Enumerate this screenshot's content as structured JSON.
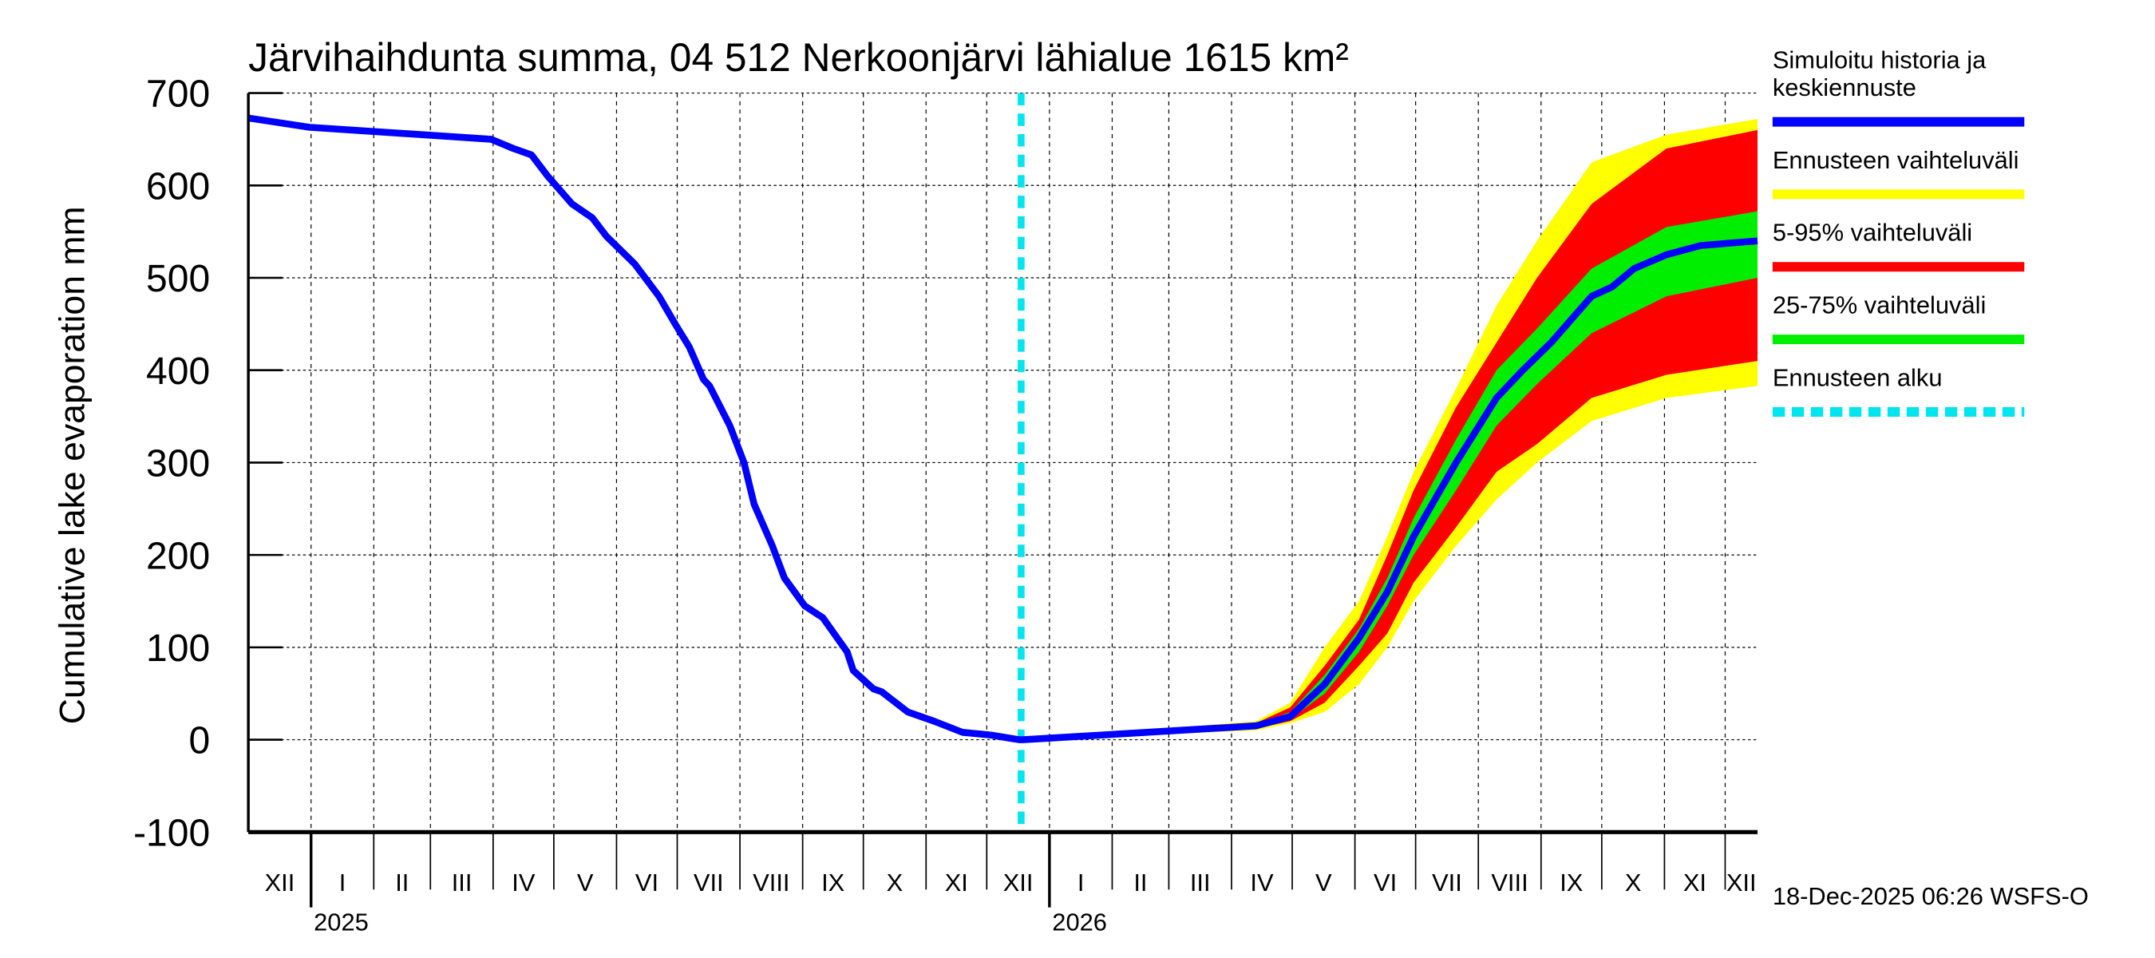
{
  "chart_data": {
    "type": "area",
    "title": "Järvihaihdunta summa, 04 512 Nerkoonjärvi lähialue 1615 km²",
    "ylabel": "Cumulative lake evaporation   mm",
    "xlabel": "",
    "ylim": [
      -100,
      700
    ],
    "yticks": [
      -100,
      0,
      100,
      200,
      300,
      400,
      500,
      600,
      700
    ],
    "x_units": "days since 1-Dec-2024",
    "xlim": [
      0,
      746
    ],
    "month_labels": [
      "XII",
      "I",
      "II",
      "III",
      "IV",
      "V",
      "VI",
      "VII",
      "VIII",
      "IX",
      "X",
      "XI",
      "XII",
      "I",
      "II",
      "III",
      "IV",
      "V",
      "VI",
      "VII",
      "VIII",
      "IX",
      "X",
      "XI",
      "XII"
    ],
    "month_lengths": [
      31,
      31,
      28,
      31,
      30,
      31,
      30,
      31,
      31,
      30,
      31,
      30,
      31,
      31,
      28,
      31,
      30,
      31,
      30,
      31,
      31,
      30,
      31,
      30,
      16
    ],
    "year_labels": [
      {
        "label": "2025",
        "day": 31
      },
      {
        "label": "2026",
        "day": 396
      }
    ],
    "forecast_start_day": 382,
    "grid": true,
    "legend_position": "right",
    "legend": [
      {
        "label": "Simuloitu historia ja keskiennuste",
        "color": "#0000ff",
        "style": "solid"
      },
      {
        "label": "Ennusteen vaihteluväli",
        "color": "#ffff00",
        "style": "solid"
      },
      {
        "label": "5-95% vaihteluväli",
        "color": "#ff0000",
        "style": "solid"
      },
      {
        "label": "25-75% vaihteluväli",
        "color": "#00ee00",
        "style": "solid"
      },
      {
        "label": "Ennusteen alku",
        "color": "#00e5ee",
        "style": "dashed"
      }
    ],
    "series": [
      {
        "name": "Simuloitu historia ja keskiennuste",
        "color": "#0000ff",
        "points": [
          [
            0,
            673
          ],
          [
            30,
            663
          ],
          [
            120,
            650
          ],
          [
            131,
            640
          ],
          [
            140,
            633
          ],
          [
            148,
            610
          ],
          [
            160,
            580
          ],
          [
            170,
            565
          ],
          [
            177,
            545
          ],
          [
            191,
            515
          ],
          [
            203,
            480
          ],
          [
            211,
            450
          ],
          [
            218,
            425
          ],
          [
            225,
            390
          ],
          [
            228,
            383
          ],
          [
            238,
            340
          ],
          [
            245,
            300
          ],
          [
            250,
            255
          ],
          [
            259,
            210
          ],
          [
            265,
            175
          ],
          [
            275,
            145
          ],
          [
            284,
            132
          ],
          [
            296,
            95
          ],
          [
            299,
            75
          ],
          [
            309,
            55
          ],
          [
            313,
            52
          ],
          [
            326,
            30
          ],
          [
            339,
            20
          ],
          [
            353,
            8
          ],
          [
            367,
            5
          ],
          [
            381,
            0
          ],
          [
            383,
            0
          ],
          [
            498,
            15
          ],
          [
            515,
            25
          ],
          [
            532,
            60
          ],
          [
            549,
            110
          ],
          [
            563,
            160
          ],
          [
            576,
            220
          ],
          [
            597,
            300
          ],
          [
            617,
            370
          ],
          [
            630,
            400
          ],
          [
            644,
            430
          ],
          [
            664,
            480
          ],
          [
            674,
            490
          ],
          [
            685,
            510
          ],
          [
            701,
            525
          ],
          [
            718,
            535
          ],
          [
            746,
            540
          ]
        ]
      },
      {
        "name": "Ennusteen vaihteluväli",
        "color": "#ffff00",
        "band": [
          [
            381,
            0,
            0
          ],
          [
            498,
            10,
            20
          ],
          [
            515,
            18,
            40
          ],
          [
            532,
            30,
            100
          ],
          [
            549,
            60,
            150
          ],
          [
            563,
            100,
            220
          ],
          [
            576,
            150,
            290
          ],
          [
            597,
            210,
            380
          ],
          [
            617,
            260,
            470
          ],
          [
            637,
            300,
            540
          ],
          [
            664,
            345,
            625
          ],
          [
            701,
            370,
            655
          ],
          [
            746,
            383,
            672
          ]
        ]
      },
      {
        "name": "5-95% vaihteluväli",
        "color": "#ff0000",
        "band": [
          [
            381,
            0,
            0
          ],
          [
            498,
            12,
            18
          ],
          [
            515,
            20,
            35
          ],
          [
            532,
            40,
            80
          ],
          [
            549,
            80,
            130
          ],
          [
            563,
            115,
            200
          ],
          [
            576,
            170,
            270
          ],
          [
            597,
            230,
            360
          ],
          [
            617,
            290,
            430
          ],
          [
            637,
            320,
            500
          ],
          [
            664,
            370,
            580
          ],
          [
            701,
            395,
            640
          ],
          [
            746,
            410,
            660
          ]
        ]
      },
      {
        "name": "25-75% vaihteluväli",
        "color": "#00ee00",
        "band": [
          [
            381,
            0,
            0
          ],
          [
            498,
            14,
            16
          ],
          [
            515,
            22,
            30
          ],
          [
            532,
            50,
            70
          ],
          [
            549,
            95,
            120
          ],
          [
            563,
            145,
            175
          ],
          [
            576,
            200,
            240
          ],
          [
            597,
            270,
            325
          ],
          [
            617,
            340,
            400
          ],
          [
            637,
            385,
            445
          ],
          [
            664,
            440,
            510
          ],
          [
            701,
            480,
            555
          ],
          [
            746,
            500,
            572
          ]
        ]
      }
    ],
    "footer": "18-Dec-2025 06:26 WSFS-O"
  }
}
